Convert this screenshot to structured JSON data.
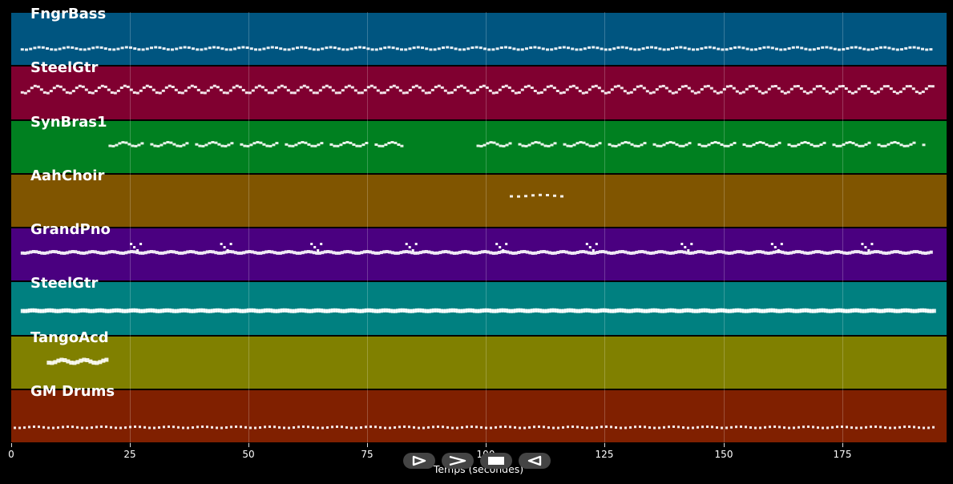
{
  "chart_data": {
    "type": "piano-roll",
    "xlabel": "Temps (secondes)",
    "xlim": [
      0,
      197
    ],
    "xticks": [
      0,
      25,
      50,
      75,
      100,
      125,
      150,
      175
    ],
    "tracks": [
      {
        "name": "FngrBass",
        "color": "#005580"
      },
      {
        "name": "SteelGtr",
        "color": "#800030"
      },
      {
        "name": "SynBras1",
        "color": "#008020"
      },
      {
        "name": "AahChoir",
        "color": "#805500"
      },
      {
        "name": "GrandPno",
        "color": "#4a0080"
      },
      {
        "name": "SteelGtr",
        "color": "#008080"
      },
      {
        "name": "TangoAcd",
        "color": "#808000"
      },
      {
        "name": "GM Drums",
        "color": "#802000"
      }
    ],
    "note_activity": [
      {
        "track": "FngrBass",
        "ranges": [
          [
            2,
            194
          ]
        ]
      },
      {
        "track": "SteelGtr",
        "ranges": [
          [
            2,
            194
          ]
        ]
      },
      {
        "track": "SynBras1",
        "ranges": [
          [
            20.5,
            82
          ],
          [
            98,
            192
          ]
        ]
      },
      {
        "track": "AahChoir",
        "ranges": [
          [
            105,
            116
          ]
        ]
      },
      {
        "track": "GrandPno",
        "ranges": [
          [
            2,
            194
          ]
        ]
      },
      {
        "track": "SteelGtr",
        "ranges": [
          [
            2,
            194
          ]
        ]
      },
      {
        "track": "TangoAcd",
        "ranges": [
          [
            7.5,
            20
          ]
        ]
      },
      {
        "track": "GM Drums",
        "ranges": [
          [
            0.5,
            194
          ]
        ]
      }
    ]
  },
  "controls": [
    {
      "name": "play-icon",
      "label": "play"
    },
    {
      "name": "forward-icon",
      "label": "forward"
    },
    {
      "name": "stop-icon",
      "label": "stop"
    },
    {
      "name": "rewind-icon",
      "label": "rewind"
    }
  ],
  "colors": {
    "background": "#000000",
    "note": "#ffffff",
    "grid": "#888888"
  }
}
